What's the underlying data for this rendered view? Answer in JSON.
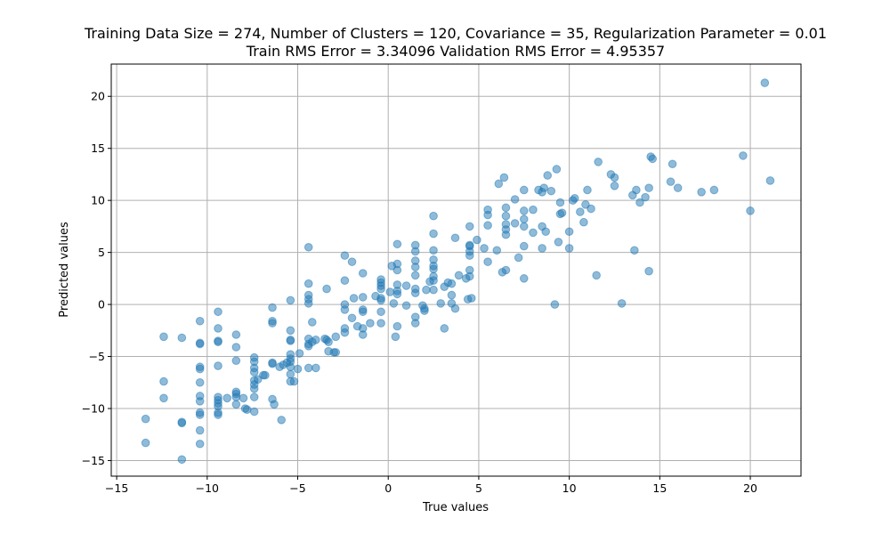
{
  "chart_data": {
    "type": "scatter",
    "title": "Training Data Size = 274, Number of Clusters = 120, Covariance = 35, Regularization Parameter = 0.01",
    "subtitle": "Train RMS Error = 3.34096 Validation RMS Error = 4.95357",
    "xlabel": "True values",
    "ylabel": "Predicted values",
    "xlim": [
      -15.3,
      22.8
    ],
    "ylim": [
      -16.5,
      23.1
    ],
    "x_ticks": [
      -15,
      -10,
      -5,
      0,
      5,
      10,
      15,
      20
    ],
    "y_ticks": [
      -15,
      -10,
      -5,
      0,
      5,
      10,
      15,
      20
    ],
    "grid": true,
    "marker_color": "#1f77b4",
    "series": [
      {
        "points": [
          [
            -13.4,
            -11.0
          ],
          [
            -13.4,
            -13.3
          ],
          [
            -12.4,
            -3.1
          ],
          [
            -12.4,
            -7.4
          ],
          [
            -12.4,
            -9.0
          ],
          [
            -11.4,
            -3.2
          ],
          [
            -11.4,
            -11.3
          ],
          [
            -11.4,
            -11.4
          ],
          [
            -11.4,
            -14.9
          ],
          [
            -10.4,
            -1.6
          ],
          [
            -10.4,
            -3.7
          ],
          [
            -10.4,
            -3.8
          ],
          [
            -10.4,
            -6.0
          ],
          [
            -10.4,
            -6.2
          ],
          [
            -10.4,
            -7.5
          ],
          [
            -10.4,
            -8.8
          ],
          [
            -10.4,
            -9.3
          ],
          [
            -10.4,
            -10.4
          ],
          [
            -10.4,
            -10.6
          ],
          [
            -10.4,
            -12.1
          ],
          [
            -10.4,
            -13.4
          ],
          [
            -9.4,
            -0.7
          ],
          [
            -9.4,
            -2.3
          ],
          [
            -9.4,
            -3.5
          ],
          [
            -9.4,
            -3.6
          ],
          [
            -9.4,
            -5.9
          ],
          [
            -9.4,
            -8.9
          ],
          [
            -9.4,
            -9.2
          ],
          [
            -9.4,
            -9.5
          ],
          [
            -9.4,
            -9.8
          ],
          [
            -9.4,
            -10.4
          ],
          [
            -9.4,
            -10.6
          ],
          [
            -8.9,
            -9.0
          ],
          [
            -8.4,
            -2.9
          ],
          [
            -8.4,
            -4.1
          ],
          [
            -8.4,
            -5.4
          ],
          [
            -8.4,
            -8.4
          ],
          [
            -8.4,
            -8.6
          ],
          [
            -8.4,
            -8.9
          ],
          [
            -8.4,
            -9.6
          ],
          [
            -8.0,
            -9.0
          ],
          [
            -7.9,
            -10.0
          ],
          [
            -7.8,
            -10.1
          ],
          [
            -7.4,
            -5.1
          ],
          [
            -7.4,
            -5.5
          ],
          [
            -7.4,
            -6.1
          ],
          [
            -7.4,
            -6.5
          ],
          [
            -7.4,
            -7.3
          ],
          [
            -7.4,
            -7.7
          ],
          [
            -7.4,
            -8.1
          ],
          [
            -7.4,
            -8.9
          ],
          [
            -7.4,
            -10.3
          ],
          [
            -7.2,
            -7.2
          ],
          [
            -6.9,
            -6.8
          ],
          [
            -6.8,
            -6.8
          ],
          [
            -6.4,
            -0.3
          ],
          [
            -6.4,
            -1.6
          ],
          [
            -6.4,
            -1.8
          ],
          [
            -6.4,
            -5.6
          ],
          [
            -6.4,
            -5.7
          ],
          [
            -6.4,
            -9.1
          ],
          [
            -6.3,
            -9.6
          ],
          [
            -6.0,
            -6.0
          ],
          [
            -5.9,
            -11.1
          ],
          [
            -5.8,
            -5.8
          ],
          [
            -5.6,
            -5.6
          ],
          [
            -5.4,
            0.4
          ],
          [
            -5.4,
            -2.5
          ],
          [
            -5.4,
            -3.4
          ],
          [
            -5.4,
            -3.5
          ],
          [
            -5.4,
            -4.8
          ],
          [
            -5.4,
            -5.2
          ],
          [
            -5.4,
            -5.5
          ],
          [
            -5.4,
            -6.0
          ],
          [
            -5.4,
            -6.7
          ],
          [
            -5.4,
            -7.4
          ],
          [
            -5.2,
            -7.4
          ],
          [
            -5.0,
            -6.2
          ],
          [
            -4.9,
            -4.7
          ],
          [
            -4.4,
            5.5
          ],
          [
            -4.4,
            2.0
          ],
          [
            -4.4,
            0.9
          ],
          [
            -4.4,
            0.5
          ],
          [
            -4.4,
            0.1
          ],
          [
            -4.4,
            -3.3
          ],
          [
            -4.4,
            -3.8
          ],
          [
            -4.4,
            -4.0
          ],
          [
            -4.4,
            -6.1
          ],
          [
            -4.2,
            -1.7
          ],
          [
            -4.2,
            -3.6
          ],
          [
            -4.0,
            -3.4
          ],
          [
            -4.0,
            -6.1
          ],
          [
            -3.5,
            -3.3
          ],
          [
            -3.4,
            1.5
          ],
          [
            -3.4,
            -3.4
          ],
          [
            -3.3,
            -3.6
          ],
          [
            -3.3,
            -4.5
          ],
          [
            -3.0,
            -4.6
          ],
          [
            -2.9,
            -3.1
          ],
          [
            -2.9,
            -4.6
          ],
          [
            -2.4,
            4.7
          ],
          [
            -2.4,
            2.3
          ],
          [
            -2.4,
            0.0
          ],
          [
            -2.4,
            -0.5
          ],
          [
            -2.4,
            -2.3
          ],
          [
            -2.4,
            -2.7
          ],
          [
            -2.0,
            4.1
          ],
          [
            -2.0,
            -1.3
          ],
          [
            -1.9,
            0.6
          ],
          [
            -1.7,
            -2.1
          ],
          [
            -1.4,
            3.0
          ],
          [
            -1.4,
            0.7
          ],
          [
            -1.4,
            -0.5
          ],
          [
            -1.4,
            -0.7
          ],
          [
            -1.4,
            -2.3
          ],
          [
            -1.4,
            -2.9
          ],
          [
            -1.0,
            -1.8
          ],
          [
            -0.7,
            0.8
          ],
          [
            -0.4,
            2.4
          ],
          [
            -0.4,
            2.1
          ],
          [
            -0.4,
            1.8
          ],
          [
            -0.4,
            1.5
          ],
          [
            -0.4,
            0.6
          ],
          [
            -0.4,
            0.4
          ],
          [
            -0.4,
            -0.7
          ],
          [
            -0.4,
            -1.8
          ],
          [
            0.1,
            1.2
          ],
          [
            0.2,
            3.7
          ],
          [
            0.3,
            0.1
          ],
          [
            0.4,
            -3.1
          ],
          [
            0.5,
            5.8
          ],
          [
            0.5,
            3.9
          ],
          [
            0.5,
            3.3
          ],
          [
            0.5,
            1.9
          ],
          [
            0.5,
            1.3
          ],
          [
            0.5,
            1.0
          ],
          [
            0.5,
            -2.1
          ],
          [
            1.0,
            1.8
          ],
          [
            1.0,
            -0.1
          ],
          [
            1.5,
            5.7
          ],
          [
            1.5,
            5.1
          ],
          [
            1.5,
            4.2
          ],
          [
            1.5,
            3.6
          ],
          [
            1.5,
            2.8
          ],
          [
            1.5,
            1.5
          ],
          [
            1.5,
            1.1
          ],
          [
            1.5,
            -1.2
          ],
          [
            1.5,
            -1.8
          ],
          [
            1.9,
            -0.1
          ],
          [
            2.0,
            -0.4
          ],
          [
            2.0,
            -0.6
          ],
          [
            2.1,
            1.4
          ],
          [
            2.3,
            2.2
          ],
          [
            2.5,
            8.5
          ],
          [
            2.5,
            6.8
          ],
          [
            2.5,
            5.2
          ],
          [
            2.5,
            4.3
          ],
          [
            2.5,
            3.7
          ],
          [
            2.5,
            3.4
          ],
          [
            2.5,
            2.7
          ],
          [
            2.5,
            2.3
          ],
          [
            2.5,
            1.4
          ],
          [
            2.9,
            0.1
          ],
          [
            3.1,
            -2.3
          ],
          [
            3.1,
            1.7
          ],
          [
            3.3,
            2.1
          ],
          [
            3.5,
            0.9
          ],
          [
            3.5,
            0.1
          ],
          [
            3.5,
            2.0
          ],
          [
            3.7,
            6.4
          ],
          [
            3.7,
            -0.4
          ],
          [
            3.9,
            2.8
          ],
          [
            4.3,
            2.5
          ],
          [
            4.5,
            7.5
          ],
          [
            4.5,
            5.7
          ],
          [
            4.5,
            5.6
          ],
          [
            4.5,
            5.1
          ],
          [
            4.5,
            4.7
          ],
          [
            4.5,
            3.3
          ],
          [
            4.5,
            2.7
          ],
          [
            4.4,
            0.5
          ],
          [
            4.6,
            0.6
          ],
          [
            4.9,
            6.2
          ],
          [
            5.3,
            5.4
          ],
          [
            5.5,
            9.1
          ],
          [
            5.5,
            8.6
          ],
          [
            5.5,
            7.6
          ],
          [
            5.5,
            4.1
          ],
          [
            6.0,
            5.2
          ],
          [
            6.1,
            11.6
          ],
          [
            6.3,
            3.1
          ],
          [
            6.4,
            12.2
          ],
          [
            6.5,
            9.3
          ],
          [
            6.5,
            8.5
          ],
          [
            6.5,
            7.7
          ],
          [
            6.5,
            7.2
          ],
          [
            6.5,
            6.7
          ],
          [
            6.5,
            3.3
          ],
          [
            7.0,
            10.1
          ],
          [
            7.0,
            7.8
          ],
          [
            7.2,
            4.5
          ],
          [
            7.5,
            11.0
          ],
          [
            7.5,
            9.0
          ],
          [
            7.5,
            8.2
          ],
          [
            7.5,
            7.5
          ],
          [
            7.5,
            5.6
          ],
          [
            7.5,
            2.5
          ],
          [
            8.0,
            9.1
          ],
          [
            8.0,
            6.9
          ],
          [
            8.3,
            11.0
          ],
          [
            8.5,
            10.8
          ],
          [
            8.5,
            7.5
          ],
          [
            8.5,
            5.4
          ],
          [
            8.6,
            11.2
          ],
          [
            8.8,
            12.4
          ],
          [
            8.7,
            7.0
          ],
          [
            9.0,
            10.9
          ],
          [
            9.2,
            0.0
          ],
          [
            9.3,
            13.0
          ],
          [
            9.4,
            6.0
          ],
          [
            9.5,
            9.8
          ],
          [
            9.5,
            8.7
          ],
          [
            9.6,
            8.8
          ],
          [
            10.0,
            7.0
          ],
          [
            10.0,
            5.4
          ],
          [
            10.2,
            10.0
          ],
          [
            10.3,
            10.2
          ],
          [
            10.6,
            8.9
          ],
          [
            10.8,
            7.9
          ],
          [
            10.9,
            9.6
          ],
          [
            11.0,
            11.0
          ],
          [
            11.2,
            9.2
          ],
          [
            11.5,
            2.8
          ],
          [
            11.6,
            13.7
          ],
          [
            12.3,
            12.5
          ],
          [
            12.5,
            12.2
          ],
          [
            12.5,
            11.4
          ],
          [
            12.9,
            0.1
          ],
          [
            13.5,
            10.5
          ],
          [
            13.6,
            5.2
          ],
          [
            13.7,
            11.0
          ],
          [
            13.9,
            9.8
          ],
          [
            14.2,
            10.3
          ],
          [
            14.4,
            11.2
          ],
          [
            14.4,
            3.2
          ],
          [
            14.5,
            14.2
          ],
          [
            14.6,
            14.0
          ],
          [
            15.6,
            11.8
          ],
          [
            15.7,
            13.5
          ],
          [
            16.0,
            11.2
          ],
          [
            17.3,
            10.8
          ],
          [
            18.0,
            11.0
          ],
          [
            19.6,
            14.3
          ],
          [
            20.0,
            9.0
          ],
          [
            20.8,
            21.3
          ],
          [
            21.1,
            11.9
          ]
        ]
      }
    ]
  }
}
